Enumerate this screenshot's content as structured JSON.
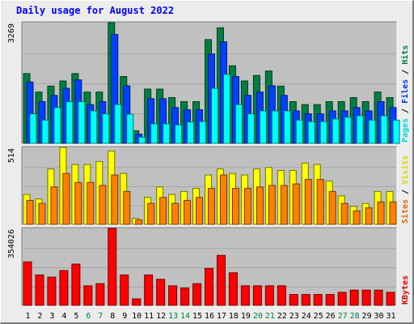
{
  "title": "Daily usage for August 2022",
  "colors": {
    "pages": "#00ffff",
    "files": "#0040ff",
    "hits": "#008040",
    "sites": "#ff8000",
    "visits": "#ffff00",
    "kbytes": "#ff0000",
    "panel_bg": "#c0c0c0",
    "page_bg": "#ececec",
    "weekday_label": "#000000",
    "weekend_label": "#008040"
  },
  "chart_data": [
    {
      "type": "bar",
      "panel": "hits-files-pages",
      "categories": [
        "1",
        "2",
        "3",
        "4",
        "5",
        "6",
        "7",
        "8",
        "9",
        "10",
        "11",
        "12",
        "13",
        "14",
        "15",
        "16",
        "17",
        "18",
        "19",
        "20",
        "21",
        "22",
        "23",
        "24",
        "25",
        "26",
        "27",
        "28",
        "29",
        "30",
        "31"
      ],
      "ymax_label": "3269",
      "ylim": [
        0,
        3269
      ],
      "series": [
        {
          "name": "Hits",
          "values": [
            1890,
            1390,
            1550,
            1690,
            1890,
            1390,
            1390,
            3269,
            1810,
            340,
            1470,
            1470,
            1240,
            1130,
            1130,
            2810,
            3130,
            2100,
            1690,
            1840,
            1960,
            1550,
            1130,
            1050,
            1050,
            1130,
            1130,
            1240,
            1130,
            1390,
            1240
          ]
        },
        {
          "name": "Files",
          "values": [
            1660,
            1130,
            1300,
            1490,
            1720,
            1050,
            1130,
            2950,
            1560,
            250,
            1210,
            1210,
            970,
            910,
            910,
            2420,
            2750,
            1810,
            1300,
            1390,
            1560,
            1300,
            880,
            800,
            800,
            880,
            880,
            970,
            880,
            1130,
            970
          ]
        },
        {
          "name": "Pages",
          "values": [
            800,
            630,
            970,
            1130,
            1130,
            880,
            800,
            1050,
            790,
            170,
            530,
            530,
            500,
            580,
            590,
            1490,
            1870,
            1050,
            800,
            880,
            880,
            880,
            630,
            590,
            590,
            660,
            710,
            750,
            630,
            750,
            630
          ]
        }
      ],
      "legend": [
        "Pages",
        "Files",
        "Hits"
      ]
    },
    {
      "type": "bar",
      "panel": "visits-sites",
      "categories": [
        "1",
        "2",
        "3",
        "4",
        "5",
        "6",
        "7",
        "8",
        "9",
        "10",
        "11",
        "12",
        "13",
        "14",
        "15",
        "16",
        "17",
        "18",
        "19",
        "20",
        "21",
        "22",
        "23",
        "24",
        "25",
        "26",
        "27",
        "28",
        "29",
        "30",
        "31"
      ],
      "ymax_label": "514",
      "ylim": [
        0,
        514
      ],
      "series": [
        {
          "name": "Visits",
          "values": [
            200,
            170,
            370,
            514,
            400,
            400,
            420,
            490,
            340,
            40,
            180,
            250,
            200,
            220,
            240,
            330,
            370,
            340,
            330,
            370,
            380,
            360,
            360,
            410,
            400,
            290,
            190,
            120,
            140,
            220,
            220
          ]
        },
        {
          "name": "Sites",
          "values": [
            160,
            140,
            250,
            340,
            280,
            280,
            260,
            330,
            220,
            30,
            140,
            180,
            140,
            160,
            180,
            240,
            330,
            240,
            240,
            250,
            260,
            260,
            270,
            300,
            300,
            220,
            140,
            90,
            110,
            150,
            150
          ]
        }
      ],
      "legend": [
        "Sites",
        "Visits"
      ]
    },
    {
      "type": "bar",
      "panel": "kbytes",
      "categories": [
        "1",
        "2",
        "3",
        "4",
        "5",
        "6",
        "7",
        "8",
        "9",
        "10",
        "11",
        "12",
        "13",
        "14",
        "15",
        "16",
        "17",
        "18",
        "19",
        "20",
        "21",
        "22",
        "23",
        "24",
        "25",
        "26",
        "27",
        "28",
        "29",
        "30",
        "31"
      ],
      "ymax_label": "354026",
      "ylim": [
        0,
        354026
      ],
      "series": [
        {
          "name": "KBytes",
          "values": [
            200000,
            140000,
            130000,
            160000,
            190000,
            90000,
            100000,
            354026,
            140000,
            30000,
            140000,
            120000,
            90000,
            80000,
            100000,
            170000,
            230000,
            150000,
            90000,
            90000,
            90000,
            90000,
            50000,
            50000,
            50000,
            50000,
            60000,
            70000,
            70000,
            70000,
            60000
          ]
        }
      ],
      "legend": [
        "KBytes"
      ]
    }
  ],
  "weekend_days": [
    6,
    7,
    13,
    14,
    20,
    21,
    27,
    28
  ]
}
